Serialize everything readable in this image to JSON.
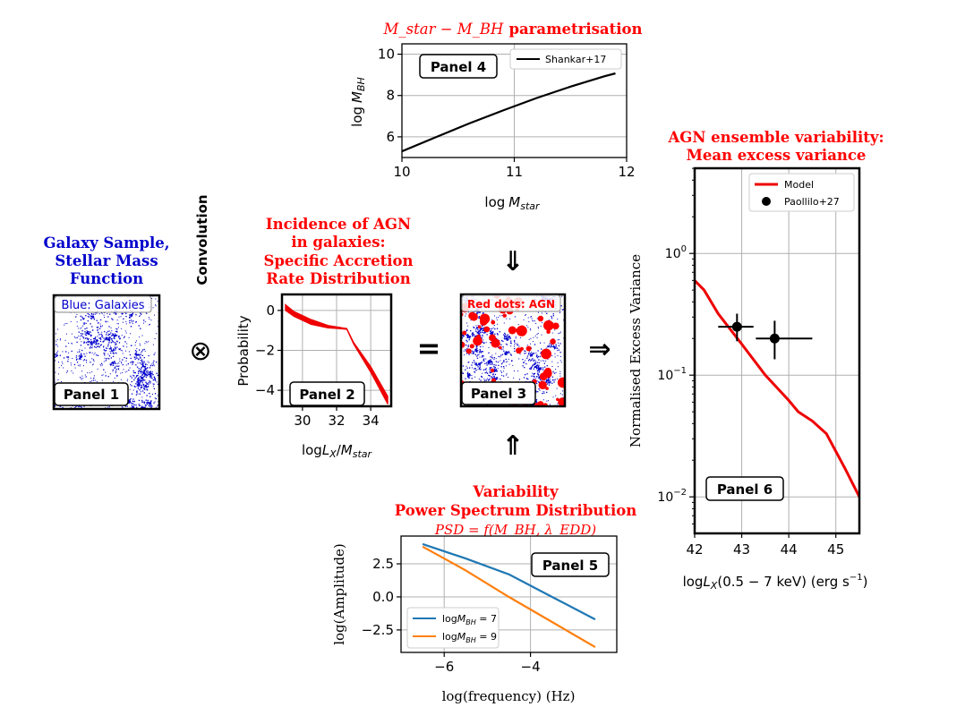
{
  "colors": {
    "red": "#ff0000",
    "blue": "#0000cc",
    "black": "#000000",
    "grid": "#b0b0b0",
    "psd_blue": "#1f77b4",
    "psd_orange": "#ff7f0e",
    "agn_red": "#ee0000"
  },
  "headers": {
    "galaxy": [
      "Galaxy Sample,",
      "Stellar Mass",
      "Function"
    ],
    "incidence": [
      "Incidence of AGN",
      "in galaxies:",
      "Specific Accretion",
      "Rate Distribution"
    ],
    "mbh_title_main": "M_star − M_BH",
    "mbh_title_suffix": "parametrisation",
    "variability": [
      "Variability",
      "Power Spectrum Distribution"
    ],
    "psd_formula": "PSD = f(M_BH, λ_EDD)",
    "ensemble": [
      "AGN ensemble variability:",
      "Mean excess variance"
    ]
  },
  "operators": {
    "convolution_label": "Convolution",
    "otimes": "⊗",
    "equals": "=",
    "arrow_right": "⇒",
    "arrow_down": "⇓",
    "arrow_up": "⇑"
  },
  "panels": {
    "p1": {
      "label": "Panel 1",
      "tag": "Blue: Galaxies"
    },
    "p2": {
      "label": "Panel 2"
    },
    "p3": {
      "label": "Panel 3",
      "tag": "Red dots: AGN"
    },
    "p4": {
      "label": "Panel 4"
    },
    "p5": {
      "label": "Panel 5"
    },
    "p6": {
      "label": "Panel 6"
    }
  },
  "chart_data": [
    {
      "id": "panel4",
      "type": "line",
      "title": "M_star − M_BH parametrisation",
      "xlabel": "log M_star",
      "ylabel": "log M_BH",
      "xlim": [
        10,
        12
      ],
      "ylim": [
        5.0,
        10.5
      ],
      "xticks": [
        10,
        11,
        12
      ],
      "yticks": [
        6,
        8,
        10
      ],
      "grid": true,
      "legend": "top-right",
      "series": [
        {
          "name": "Shankar+17",
          "color": "#000000",
          "x": [
            10.0,
            10.3,
            10.6,
            10.9,
            11.2,
            11.5,
            11.8,
            11.9
          ],
          "y": [
            5.3,
            5.98,
            6.65,
            7.28,
            7.88,
            8.43,
            8.93,
            9.07
          ]
        }
      ]
    },
    {
      "id": "panel2",
      "type": "area",
      "xlabel": "logL_X/M_star",
      "ylabel": "Probability",
      "xlim": [
        28.8,
        35.2
      ],
      "ylim": [
        -4.8,
        0.8
      ],
      "xticks": [
        30,
        32,
        34
      ],
      "yticks": [
        0,
        -2,
        -4
      ],
      "grid": true,
      "series": [
        {
          "name": "",
          "color": "#ee0000",
          "x": [
            29.0,
            29.5,
            30.5,
            31.5,
            32.2,
            32.6,
            33.0,
            34.0,
            35.0
          ],
          "upper": [
            0.3,
            -0.05,
            -0.45,
            -0.75,
            -0.85,
            -0.9,
            -1.6,
            -2.8,
            -4.3
          ],
          "lower": [
            0.0,
            -0.3,
            -0.7,
            -0.88,
            -0.92,
            -0.95,
            -1.7,
            -3.1,
            -4.7
          ]
        }
      ]
    },
    {
      "id": "panel5",
      "type": "line",
      "title": "Variability Power Spectrum Distribution",
      "xlabel": "log(frequency) (Hz)",
      "ylabel": "log(Amplitude)",
      "xlim": [
        -7.0,
        -2.0
      ],
      "ylim": [
        -4.2,
        4.6
      ],
      "xticks": [
        -6,
        -4
      ],
      "yticks": [
        2.5,
        0.0,
        -2.5
      ],
      "grid": true,
      "legend": "bottom-left",
      "series": [
        {
          "name": "logM_BH = 7",
          "color": "#1f77b4",
          "x": [
            -6.5,
            -5.5,
            -4.5,
            -3.5,
            -2.5
          ],
          "y": [
            4.0,
            2.9,
            1.7,
            0.0,
            -1.7
          ]
        },
        {
          "name": "logM_BH = 9",
          "color": "#ff7f0e",
          "x": [
            -6.5,
            -5.5,
            -4.5,
            -3.5,
            -2.5
          ],
          "y": [
            3.8,
            2.0,
            0.0,
            -1.9,
            -3.8
          ]
        }
      ]
    },
    {
      "id": "panel6",
      "type": "line",
      "title": "AGN ensemble variability: Mean excess variance",
      "xlabel": "logL_X(0.5 − 7 keV)   (erg s⁻¹)",
      "ylabel": "Normalised Excess Variance",
      "xlim": [
        42,
        45.5
      ],
      "ylim_log10": [
        -2.3,
        0.7
      ],
      "xticks": [
        42,
        43,
        44,
        45
      ],
      "yticks_log10": [
        -2,
        -1,
        0
      ],
      "grid": true,
      "log_y": true,
      "legend": "top-right",
      "series": [
        {
          "name": "Model",
          "color": "#ee0000",
          "x": [
            42.0,
            42.2,
            42.5,
            43.0,
            43.5,
            44.0,
            44.2,
            44.5,
            44.8,
            45.2,
            45.5
          ],
          "y": [
            0.6,
            0.5,
            0.32,
            0.18,
            0.1,
            0.062,
            0.05,
            0.042,
            0.033,
            0.017,
            0.01
          ]
        },
        {
          "name": "Paollilo+27",
          "color": "#000000",
          "points": [
            {
              "x": 42.9,
              "y": 0.25,
              "xerr": [
                0.4,
                0.35
              ],
              "yerr": [
                0.06,
                0.07
              ]
            },
            {
              "x": 43.7,
              "y": 0.2,
              "xerr": [
                0.4,
                0.8
              ],
              "yerr": [
                0.065,
                0.08
              ]
            }
          ]
        }
      ]
    }
  ]
}
